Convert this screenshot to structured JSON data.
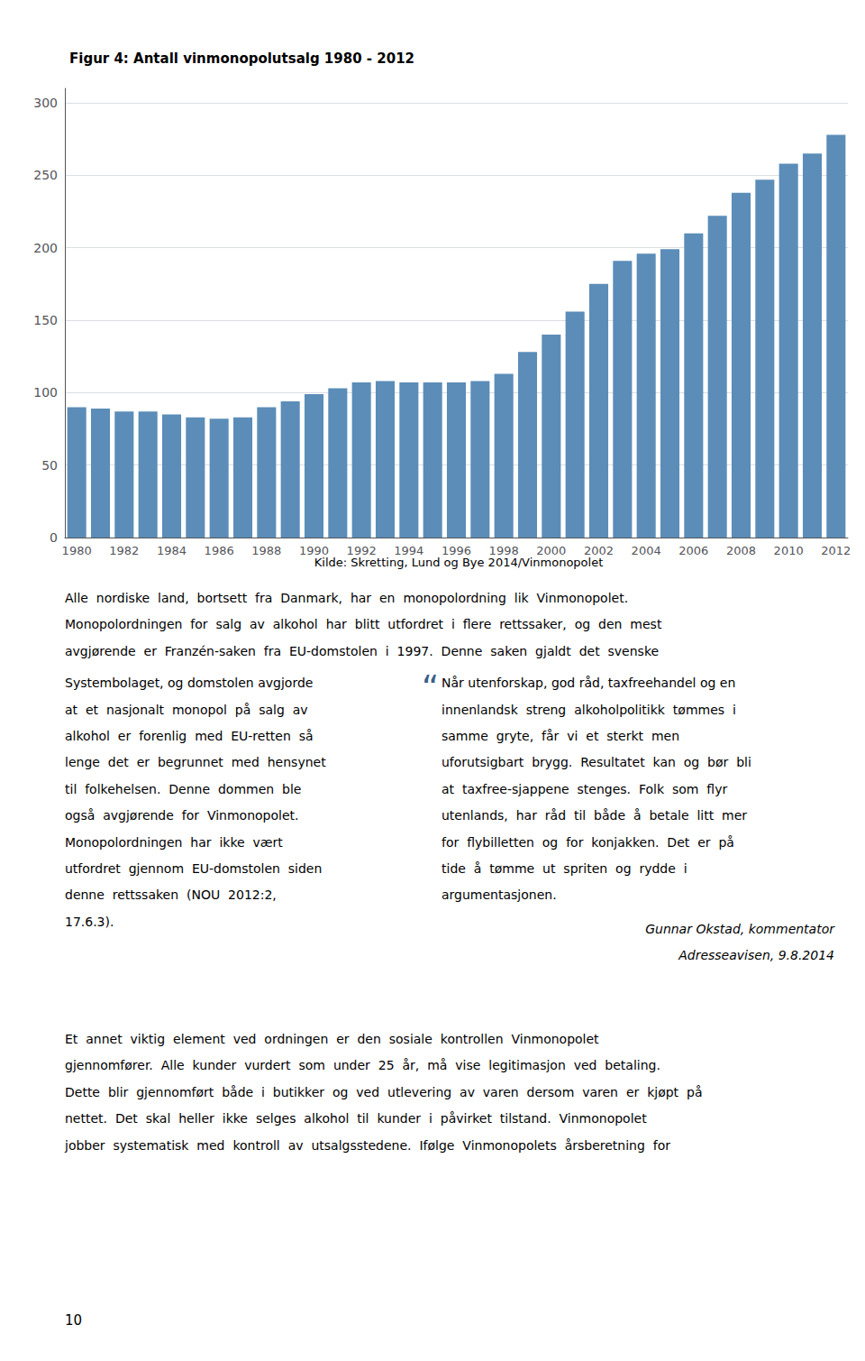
{
  "chart_data": {
    "type": "bar",
    "title": "Figur 4: Antall vinmonopolutsalg 1980 - 2012",
    "categories": [
      "1980",
      null,
      "1982",
      null,
      "1984",
      null,
      "1986",
      null,
      "1988",
      null,
      "1990",
      null,
      "1992",
      null,
      "1994",
      null,
      "1996",
      null,
      "1998",
      null,
      "2000",
      null,
      "2002",
      null,
      "2004",
      null,
      "2006",
      null,
      "2008",
      null,
      "2010",
      null,
      "2012"
    ],
    "values": [
      90,
      89,
      87,
      87,
      85,
      83,
      82,
      83,
      90,
      94,
      99,
      103,
      107,
      108,
      107,
      107,
      107,
      108,
      113,
      128,
      140,
      156,
      175,
      191,
      196,
      199,
      210,
      222,
      238,
      247,
      258,
      265,
      278
    ],
    "color": "#5b8db8",
    "ylim": [
      0,
      310
    ],
    "yticks": [
      0,
      50,
      100,
      150,
      200,
      250,
      300
    ],
    "grid": true,
    "annotations": {
      "source": "Kilde: Skretting, Lund og Bye 2014/Vinmonopolet",
      "intro_lines": [
        "Alle  nordiske  land,  bortsett  fra  Danmark,  har  en  monopolordning  lik  Vinmonopolet.",
        "Monopolordningen  for  salg  av  alkohol  har  blitt  utfordret  i  flere  rettssaker,  og  den  mest",
        "avgjørende  er  Franzén-saken  fra  EU-domstolen  i  1997.  Denne  saken  gjaldt  det  svenske"
      ],
      "left_column_lines": [
        "Systembolaget, og domstolen avgjorde",
        "at  et  nasjonalt  monopol  på  salg  av",
        "alkohol  er  forenlig  med  EU-retten  så",
        "lenge  det  er  begrunnet  med  hensynet",
        "til  folkehelsen.  Denne  dommen  ble",
        "også  avgjørende  for  Vinmonopolet.",
        "Monopolordningen  har  ikke  vært",
        "utfordret  gjennom  EU-domstolen  siden",
        "denne  rettssaken  (NOU  2012:2,",
        "17.6.3)."
      ],
      "quote_mark": "“",
      "quote_color": "#3a5f8a",
      "quote_lines": [
        "Når utenforskap, god råd, taxfreehandel og en",
        "innenlandsk  streng  alkoholpolitikk  tømmes  i",
        "samme  gryte,  får  vi  et  sterkt  men",
        "uforutsigbart  brygg.  Resultatet  kan  og  bør  bli",
        "at  taxfree-sjappene  stenges.  Folk  som  flyr",
        "utenlands,  har  råd  til  både  å  betale  litt  mer",
        "for  flybilletten  og  for  konjakken.  Det  er  på",
        "tide  å  tømme  ut  spriten  og  rydde  i",
        "argumentasjonen."
      ],
      "attribution": [
        "Gunnar Okstad, kommentator",
        "Adresseavisen, 9.8.2014"
      ],
      "closing_lines": [
        "Et  annet  viktig  element  ved  ordningen  er  den  sosiale  kontrollen  Vinmonopolet",
        "gjennomfører.  Alle  kunder  vurdert  som  under  25  år,  må  vise  legitimasjon  ved  betaling.",
        "Dette  blir  gjennomført  både  i  butikker  og  ved  utlevering  av  varen  dersom  varen  er  kjøpt  på",
        "nettet.  Det  skal  heller  ikke  selges  alkohol  til  kunder  i  påvirket  tilstand.  Vinmonopolet",
        "jobber  systematisk  med  kontroll  av  utsalgsstedene.  Ifølge  Vinmonopolets  årsberetning  for"
      ],
      "page_number": "10"
    }
  }
}
